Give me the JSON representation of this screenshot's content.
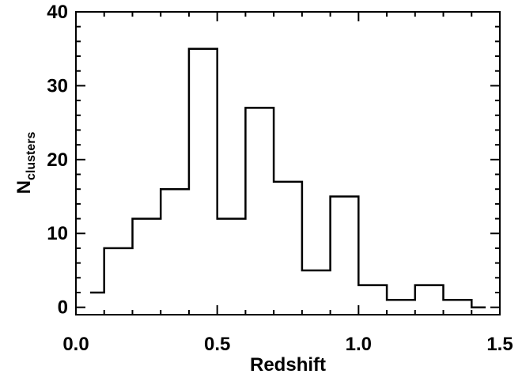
{
  "chart_data": {
    "type": "bar",
    "subtype": "step-histogram",
    "xlabel": "Redshift",
    "ylabel": "N",
    "ylabel_subscript": "clusters",
    "xlim": [
      0.0,
      1.5
    ],
    "ylim": [
      -1,
      40
    ],
    "xticks": [
      0.0,
      0.5,
      1.0,
      1.5
    ],
    "xtick_labels": [
      "0.0",
      "0.5",
      "1.0",
      "1.5"
    ],
    "yticks": [
      0,
      10,
      20,
      30,
      40
    ],
    "ytick_labels": [
      "0",
      "10",
      "20",
      "30",
      "40"
    ],
    "bin_edges": [
      0.05,
      0.1,
      0.2,
      0.3,
      0.4,
      0.5,
      0.6,
      0.7,
      0.8,
      0.9,
      1.0,
      1.1,
      1.2,
      1.3,
      1.4,
      1.45
    ],
    "values": [
      2,
      8,
      12,
      16,
      35,
      12,
      27,
      17,
      5,
      15,
      3,
      1,
      3,
      1,
      0
    ],
    "grid": false,
    "line_color": "#000000"
  }
}
